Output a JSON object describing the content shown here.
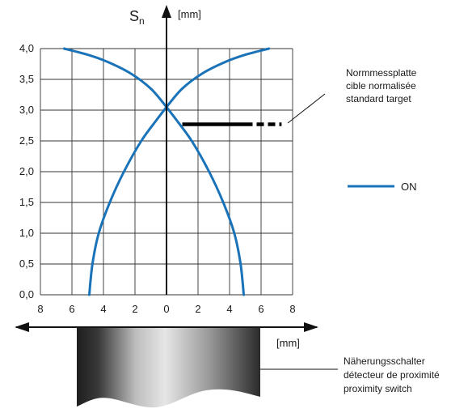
{
  "chart_data": {
    "type": "line",
    "y_axis_symbol": "S",
    "y_axis_subscript": "n",
    "y_unit": "[mm]",
    "x_unit": "[mm]",
    "ylim": [
      0,
      4
    ],
    "xlim": [
      -8,
      8
    ],
    "y_ticks": [
      "0,0",
      "0,5",
      "1,0",
      "1,5",
      "2,0",
      "2,5",
      "3,0",
      "3,5",
      "4,0"
    ],
    "y_tick_values": [
      0,
      0.5,
      1,
      1.5,
      2,
      2.5,
      3,
      3.5,
      4
    ],
    "x_ticks": [
      "8",
      "6",
      "4",
      "2",
      "0",
      "2",
      "4",
      "6",
      "8"
    ],
    "x_tick_values": [
      -8,
      -6,
      -4,
      -2,
      0,
      2,
      4,
      6,
      8
    ],
    "grid": true,
    "series": [
      {
        "name": "ON",
        "color": "#1a73b8",
        "branches": [
          {
            "x": [
              -4.9,
              -4.7,
              -4.3,
              -3.6,
              -2.7,
              -1.6,
              -0.6,
              0
            ],
            "y": [
              0,
              0.5,
              1.0,
              1.5,
              2.0,
              2.5,
              2.85,
              3.05
            ]
          },
          {
            "x": [
              4.9,
              4.7,
              4.3,
              3.6,
              2.7,
              1.6,
              0.6,
              0
            ],
            "y": [
              0,
              0.5,
              1.0,
              1.5,
              2.0,
              2.5,
              2.85,
              3.05
            ]
          },
          {
            "x": [
              0,
              -1.0,
              -2.3,
              -3.7,
              -5.0,
              -6.5
            ],
            "y": [
              3.05,
              3.35,
              3.6,
              3.78,
              3.9,
              4.0
            ]
          },
          {
            "x": [
              0,
              1.0,
              2.3,
              3.7,
              5.0,
              6.5
            ],
            "y": [
              3.05,
              3.35,
              3.6,
              3.78,
              3.9,
              4.0
            ]
          }
        ]
      }
    ],
    "target_bar": {
      "y": 2.77,
      "x_solid": [
        1.0,
        5.0
      ],
      "x_dashed": [
        5.0,
        7.3
      ]
    },
    "legend": {
      "label": "ON",
      "placement": "right"
    },
    "annotations": {
      "target": [
        "Normmessplatte",
        "cible normalisée",
        "standard target"
      ],
      "switch": [
        "Näherungsschalter",
        "détecteur de proximité",
        "proximity switch"
      ]
    }
  }
}
